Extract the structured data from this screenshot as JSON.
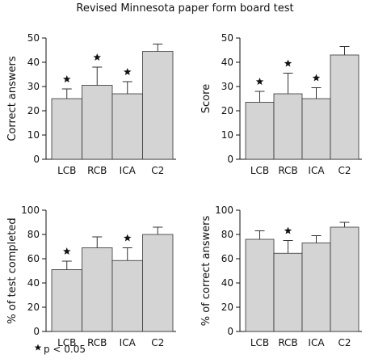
{
  "title": "Revised Minnesota paper form board test",
  "footnote": "p < 0.05",
  "chart_data": [
    {
      "type": "bar",
      "ylabel": "Correct answers",
      "categories": [
        "LCB",
        "RCB",
        "ICA",
        "C2"
      ],
      "values": [
        25,
        30.5,
        27,
        44.5
      ],
      "errors": [
        4,
        7.5,
        5,
        3
      ],
      "significant": [
        true,
        true,
        true,
        false
      ],
      "color": "#d4d4d4",
      "ylim": [
        0,
        50
      ],
      "yticks": [
        0,
        10,
        20,
        30,
        40,
        50
      ]
    },
    {
      "type": "bar",
      "ylabel": "Score",
      "categories": [
        "LCB",
        "RCB",
        "ICA",
        "C2"
      ],
      "values": [
        23.5,
        27,
        25,
        43
      ],
      "errors": [
        4.5,
        8.5,
        4.5,
        3.5
      ],
      "significant": [
        true,
        true,
        true,
        false
      ],
      "color": "#d4d4d4",
      "ylim": [
        0,
        50
      ],
      "yticks": [
        0,
        10,
        20,
        30,
        40,
        50
      ]
    },
    {
      "type": "bar",
      "ylabel": "% of test completed",
      "categories": [
        "LCB",
        "RCB",
        "ICA",
        "C2"
      ],
      "values": [
        51,
        69,
        58.5,
        80
      ],
      "errors": [
        7,
        9,
        10.5,
        6
      ],
      "significant": [
        true,
        false,
        true,
        false
      ],
      "color": "#d4d4d4",
      "ylim": [
        0,
        100
      ],
      "yticks": [
        0,
        20,
        40,
        60,
        80,
        100
      ]
    },
    {
      "type": "bar",
      "ylabel": "% of correct answers",
      "categories": [
        "LCB",
        "RCB",
        "ICA",
        "C2"
      ],
      "values": [
        76,
        64.5,
        73,
        86
      ],
      "errors": [
        7,
        10.5,
        6,
        4
      ],
      "significant": [
        false,
        true,
        false,
        false
      ],
      "color": "#d4d4d4",
      "ylim": [
        0,
        100
      ],
      "yticks": [
        0,
        20,
        40,
        60,
        80,
        100
      ]
    }
  ]
}
